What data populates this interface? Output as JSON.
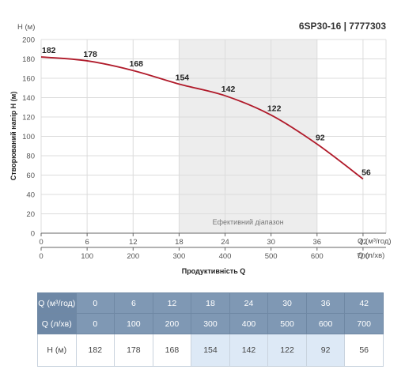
{
  "chart_data": {
    "type": "line",
    "title": "6SP30-16 | 7777303",
    "ylabel": "Створюваний напір H (м)",
    "y_unit_label": "H (м)",
    "xlabel": "Продуктивність Q",
    "x_unit_label": "Q (м³/год)",
    "x2_unit_label": "Q (л/хв)",
    "ylim": [
      0,
      200
    ],
    "y_ticks": [
      0,
      20,
      40,
      60,
      80,
      100,
      120,
      140,
      160,
      180,
      200
    ],
    "xlim": [
      0,
      45
    ],
    "x_ticks": [
      0,
      6,
      12,
      18,
      24,
      30,
      36,
      42
    ],
    "x2_ticks": [
      0,
      100,
      200,
      300,
      400,
      500,
      600,
      700
    ],
    "grid": true,
    "efficient_range": {
      "label": "Ефективний діапазон",
      "from": 18,
      "to": 36
    },
    "series": [
      {
        "x": [
          0,
          6,
          12,
          18,
          24,
          30,
          36,
          42
        ],
        "values": [
          182,
          178,
          168,
          154,
          142,
          122,
          92,
          56
        ],
        "color": "#b01a2a"
      }
    ]
  },
  "table": {
    "rows": [
      {
        "label": "Q (м³/год)",
        "cells": [
          "0",
          "6",
          "12",
          "18",
          "24",
          "30",
          "36",
          "42"
        ]
      },
      {
        "label": "Q (л/хв)",
        "cells": [
          "0",
          "100",
          "200",
          "300",
          "400",
          "500",
          "600",
          "700"
        ]
      },
      {
        "label": "H (м)",
        "cells": [
          "182",
          "178",
          "168",
          "154",
          "142",
          "122",
          "92",
          "56"
        ]
      }
    ],
    "highlight_columns": [
      3,
      4,
      5,
      6
    ],
    "colors": {
      "header": "#7f98b4",
      "highlight": "#dde9f6"
    }
  }
}
